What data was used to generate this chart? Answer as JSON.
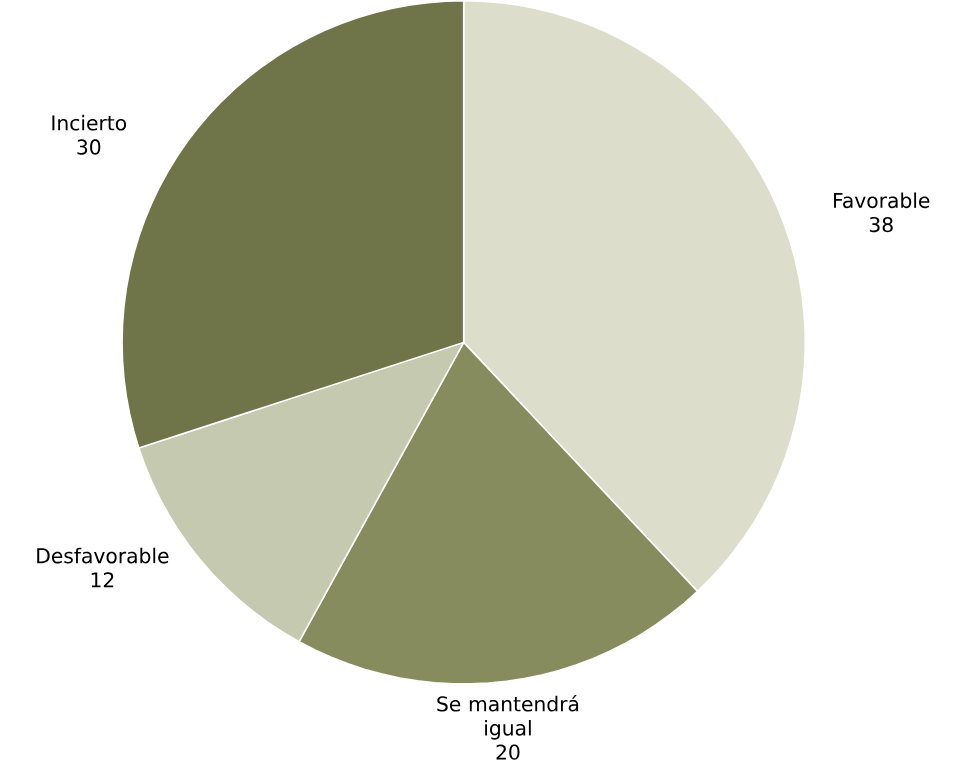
{
  "chart_data": {
    "type": "pie",
    "categories": [
      "Favorable",
      "Se mantendrá igual",
      "Desfavorable",
      "Incierto"
    ],
    "values": [
      38,
      20,
      12,
      30
    ],
    "colors": [
      "#dcdecb",
      "#878c5e",
      "#c4c9b0",
      "#6f7548"
    ],
    "data_labels": true
  }
}
